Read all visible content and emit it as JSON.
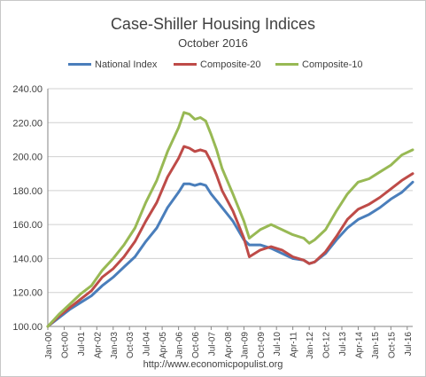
{
  "chart_data": {
    "type": "line",
    "title": "Case-Shiller Housing Indices",
    "subtitle": "October 2016",
    "footer": "http://www.economicpopulist.org",
    "xlabel": "",
    "ylabel": "",
    "ylim": [
      100,
      240
    ],
    "y_ticks": [
      "100.00",
      "120.00",
      "140.00",
      "160.00",
      "180.00",
      "200.00",
      "220.00",
      "240.00"
    ],
    "x_ticks": [
      "Jan-00",
      "Oct-00",
      "Jul-01",
      "Apr-02",
      "Jan-03",
      "Oct-03",
      "Jul-04",
      "Apr-05",
      "Jan-06",
      "Oct-06",
      "Jul-07",
      "Apr-08",
      "Jan-09",
      "Oct-09",
      "Jul-10",
      "Apr-11",
      "Jan-12",
      "Oct-12",
      "Jul-13",
      "Apr-14",
      "Jan-15",
      "Oct-15",
      "Jul-16"
    ],
    "grid": "horizontal",
    "legend_position": "top",
    "series": [
      {
        "name": "National Index",
        "color": "#4a7ebb",
        "values": [
          [
            "2000-01-01",
            100
          ],
          [
            "2000-07-01",
            105
          ],
          [
            "2001-01-01",
            110
          ],
          [
            "2001-07-01",
            114
          ],
          [
            "2002-01-01",
            118
          ],
          [
            "2002-07-01",
            124
          ],
          [
            "2003-01-01",
            129
          ],
          [
            "2003-07-01",
            135
          ],
          [
            "2004-01-01",
            141
          ],
          [
            "2004-07-01",
            150
          ],
          [
            "2005-01-01",
            158
          ],
          [
            "2005-07-01",
            170
          ],
          [
            "2006-01-01",
            179
          ],
          [
            "2006-04-01",
            184
          ],
          [
            "2006-07-01",
            184
          ],
          [
            "2006-10-01",
            183
          ],
          [
            "2007-01-01",
            184
          ],
          [
            "2007-04-01",
            183
          ],
          [
            "2007-07-01",
            178
          ],
          [
            "2007-10-01",
            174
          ],
          [
            "2008-01-01",
            170
          ],
          [
            "2008-07-01",
            162
          ],
          [
            "2009-01-01",
            151
          ],
          [
            "2009-04-01",
            148
          ],
          [
            "2009-10-01",
            148
          ],
          [
            "2010-04-01",
            146
          ],
          [
            "2010-10-01",
            143
          ],
          [
            "2011-04-01",
            140
          ],
          [
            "2011-10-01",
            139
          ],
          [
            "2012-01-01",
            137
          ],
          [
            "2012-04-01",
            138
          ],
          [
            "2012-10-01",
            143
          ],
          [
            "2013-04-01",
            151
          ],
          [
            "2013-10-01",
            158
          ],
          [
            "2014-04-01",
            163
          ],
          [
            "2014-10-01",
            166
          ],
          [
            "2015-04-01",
            170
          ],
          [
            "2015-10-01",
            175
          ],
          [
            "2016-04-01",
            179
          ],
          [
            "2016-10-01",
            185
          ]
        ]
      },
      {
        "name": "Composite-20",
        "color": "#be4b48",
        "values": [
          [
            "2000-01-01",
            100
          ],
          [
            "2000-07-01",
            106
          ],
          [
            "2001-01-01",
            111
          ],
          [
            "2001-07-01",
            116
          ],
          [
            "2002-01-01",
            121
          ],
          [
            "2002-07-01",
            129
          ],
          [
            "2003-01-01",
            134
          ],
          [
            "2003-07-01",
            141
          ],
          [
            "2004-01-01",
            150
          ],
          [
            "2004-07-01",
            162
          ],
          [
            "2005-01-01",
            173
          ],
          [
            "2005-07-01",
            188
          ],
          [
            "2006-01-01",
            199
          ],
          [
            "2006-04-01",
            206
          ],
          [
            "2006-07-01",
            205
          ],
          [
            "2006-10-01",
            203
          ],
          [
            "2007-01-01",
            204
          ],
          [
            "2007-04-01",
            203
          ],
          [
            "2007-07-01",
            197
          ],
          [
            "2007-10-01",
            189
          ],
          [
            "2008-01-01",
            180
          ],
          [
            "2008-07-01",
            168
          ],
          [
            "2009-01-01",
            152
          ],
          [
            "2009-04-01",
            141
          ],
          [
            "2009-10-01",
            145
          ],
          [
            "2010-04-01",
            147
          ],
          [
            "2010-10-01",
            145
          ],
          [
            "2011-04-01",
            141
          ],
          [
            "2011-10-01",
            139
          ],
          [
            "2012-01-01",
            137
          ],
          [
            "2012-04-01",
            138
          ],
          [
            "2012-10-01",
            144
          ],
          [
            "2013-04-01",
            153
          ],
          [
            "2013-10-01",
            163
          ],
          [
            "2014-04-01",
            169
          ],
          [
            "2014-10-01",
            172
          ],
          [
            "2015-04-01",
            176
          ],
          [
            "2015-10-01",
            181
          ],
          [
            "2016-04-01",
            186
          ],
          [
            "2016-10-01",
            190
          ]
        ]
      },
      {
        "name": "Composite-10",
        "color": "#98b954",
        "values": [
          [
            "2000-01-01",
            100
          ],
          [
            "2000-07-01",
            107
          ],
          [
            "2001-01-01",
            113
          ],
          [
            "2001-07-01",
            119
          ],
          [
            "2002-01-01",
            124
          ],
          [
            "2002-07-01",
            133
          ],
          [
            "2003-01-01",
            140
          ],
          [
            "2003-07-01",
            148
          ],
          [
            "2004-01-01",
            158
          ],
          [
            "2004-07-01",
            173
          ],
          [
            "2005-01-01",
            186
          ],
          [
            "2005-07-01",
            203
          ],
          [
            "2006-01-01",
            217
          ],
          [
            "2006-04-01",
            226
          ],
          [
            "2006-07-01",
            225
          ],
          [
            "2006-10-01",
            222
          ],
          [
            "2007-01-01",
            223
          ],
          [
            "2007-04-01",
            221
          ],
          [
            "2007-07-01",
            213
          ],
          [
            "2007-10-01",
            204
          ],
          [
            "2008-01-01",
            193
          ],
          [
            "2008-07-01",
            178
          ],
          [
            "2009-01-01",
            162
          ],
          [
            "2009-04-01",
            152
          ],
          [
            "2009-10-01",
            157
          ],
          [
            "2010-04-01",
            160
          ],
          [
            "2010-10-01",
            157
          ],
          [
            "2011-04-01",
            154
          ],
          [
            "2011-10-01",
            152
          ],
          [
            "2012-01-01",
            149
          ],
          [
            "2012-04-01",
            151
          ],
          [
            "2012-10-01",
            157
          ],
          [
            "2013-04-01",
            168
          ],
          [
            "2013-10-01",
            178
          ],
          [
            "2014-04-01",
            185
          ],
          [
            "2014-10-01",
            187
          ],
          [
            "2015-04-01",
            191
          ],
          [
            "2015-10-01",
            195
          ],
          [
            "2016-04-01",
            201
          ],
          [
            "2016-10-01",
            204
          ]
        ]
      }
    ]
  }
}
